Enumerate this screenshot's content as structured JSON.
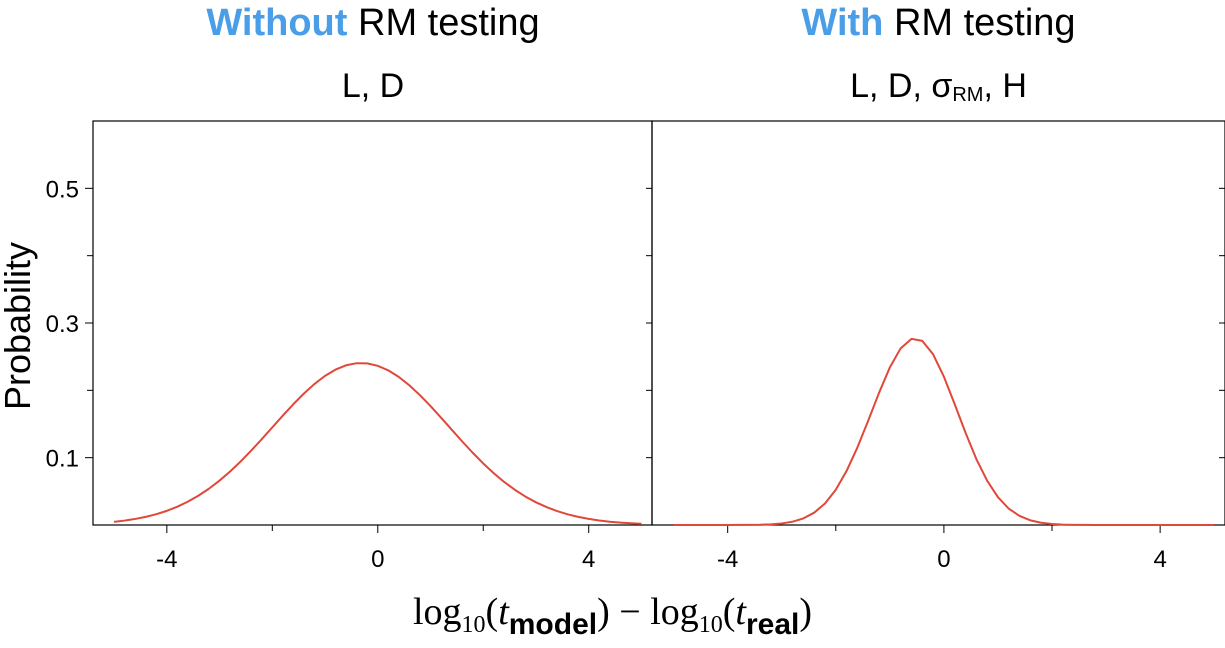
{
  "chart_data": [
    {
      "type": "line",
      "title_accent": "Without",
      "title_rest": " RM testing",
      "subtitle": "L, D",
      "x": [
        -5.0,
        -4.8,
        -4.6,
        -4.4,
        -4.2,
        -4.0,
        -3.8,
        -3.6,
        -3.4,
        -3.2,
        -3.0,
        -2.8,
        -2.6,
        -2.4,
        -2.2,
        -2.0,
        -1.8,
        -1.6,
        -1.4,
        -1.2,
        -1.0,
        -0.8,
        -0.6,
        -0.4,
        -0.2,
        0.0,
        0.2,
        0.4,
        0.6,
        0.8,
        1.0,
        1.2,
        1.4,
        1.6,
        1.8,
        2.0,
        2.2,
        2.4,
        2.6,
        2.8,
        3.0,
        3.2,
        3.4,
        3.6,
        3.8,
        4.0,
        4.2,
        4.4,
        4.6,
        4.8,
        5.0
      ],
      "series": [
        {
          "values": [
            0.0047,
            0.0066,
            0.009,
            0.0121,
            0.0161,
            0.021,
            0.0272,
            0.0347,
            0.0436,
            0.054,
            0.066,
            0.0795,
            0.0944,
            0.1105,
            0.1275,
            0.145,
            0.1625,
            0.1795,
            0.1953,
            0.2095,
            0.2215,
            0.2308,
            0.2372,
            0.2403,
            0.24,
            0.2364,
            0.2296,
            0.2198,
            0.2074,
            0.1928,
            0.1766,
            0.1594,
            0.1417,
            0.1242,
            0.1073,
            0.0914,
            0.0768,
            0.0637,
            0.0522,
            0.0422,
            0.0337,
            0.0266,
            0.0207,
            0.0159,
            0.0121,
            0.0091,
            0.0067,
            0.0049,
            0.0036,
            0.0026,
            0.0018
          ]
        }
      ],
      "xlim": [
        -5.4,
        5.2
      ],
      "ylim": [
        0,
        0.6
      ],
      "xticks": [
        -4,
        0,
        4
      ],
      "xtick_labels": [
        "-4",
        "0",
        "4"
      ],
      "yticks": [
        0.1,
        0.3,
        0.5
      ],
      "ytick_labels": [
        "0.1",
        "0.3",
        "0.5"
      ],
      "ylabel": "Probability",
      "grid": false,
      "line_color": "#e0483a"
    },
    {
      "type": "line",
      "title_accent": "With",
      "title_rest": " RM testing",
      "subtitle_main": "L, D, σ",
      "subtitle_sub": "RM",
      "subtitle_tail": ", H",
      "x": [
        -5.0,
        -4.8,
        -4.6,
        -4.4,
        -4.2,
        -4.0,
        -3.8,
        -3.6,
        -3.4,
        -3.2,
        -3.0,
        -2.8,
        -2.6,
        -2.4,
        -2.2,
        -2.0,
        -1.8,
        -1.6,
        -1.4,
        -1.2,
        -1.0,
        -0.8,
        -0.6,
        -0.4,
        -0.2,
        0.0,
        0.2,
        0.4,
        0.6,
        0.8,
        1.0,
        1.2,
        1.4,
        1.6,
        1.8,
        2.0,
        2.2,
        2.4,
        2.6,
        2.8,
        3.0,
        3.2,
        3.4,
        3.6,
        3.8,
        4.0,
        4.2,
        4.4,
        4.6,
        4.8,
        5.0
      ],
      "series": [
        {
          "values": [
            0.0,
            0.0,
            0.0,
            0.0,
            0.0,
            0.0,
            0.0001,
            0.0002,
            0.0004,
            0.001,
            0.0023,
            0.0049,
            0.0098,
            0.0183,
            0.032,
            0.0524,
            0.0803,
            0.1152,
            0.1551,
            0.1963,
            0.234,
            0.2624,
            0.2765,
            0.2735,
            0.2535,
            0.2202,
            0.1794,
            0.137,
            0.098,
            0.0658,
            0.0413,
            0.0243,
            0.0134,
            0.0069,
            0.0033,
            0.0015,
            0.0006,
            0.0002,
            0.0001,
            0.0,
            0.0,
            0.0,
            0.0,
            0.0,
            0.0,
            0.0,
            0.0,
            0.0,
            0.0,
            0.0,
            0.0
          ]
        }
      ],
      "xlim": [
        -5.4,
        5.2
      ],
      "ylim": [
        0,
        0.6
      ],
      "xticks": [
        -4,
        0,
        4
      ],
      "xtick_labels": [
        "-4",
        "0",
        "4"
      ],
      "grid": false,
      "line_color": "#e0483a"
    }
  ],
  "xlabel": {
    "log": "log",
    "base": "10",
    "open": "(",
    "t": "t",
    "model": "model",
    "close_minus": ") − log",
    "real": "real",
    "close": ")"
  },
  "colors": {
    "accent": "#4a9ee8",
    "line": "#e0483a",
    "axis": "#000000"
  }
}
